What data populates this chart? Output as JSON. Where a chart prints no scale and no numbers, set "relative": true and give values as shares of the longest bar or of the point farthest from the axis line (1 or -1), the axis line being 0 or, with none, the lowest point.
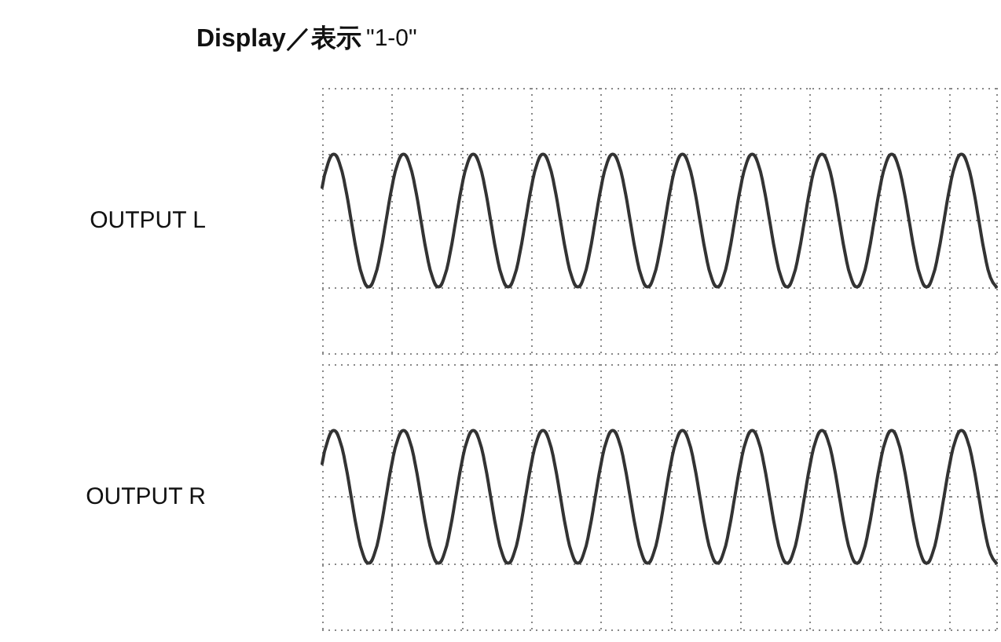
{
  "chart_data": [
    {
      "type": "line",
      "title": "Display／表示",
      "subtitle": "\"1-0\"",
      "ylabel": "OUTPUT L",
      "relative": true,
      "grid": true,
      "marker": "none",
      "categories": [
        null,
        null,
        null,
        null,
        null,
        null,
        null,
        null,
        null,
        null,
        null,
        null,
        null,
        null,
        null,
        null,
        null,
        null,
        null,
        null,
        null,
        null,
        null,
        null,
        null,
        null,
        null,
        null,
        null,
        null,
        null,
        null,
        null,
        null,
        null,
        null,
        null,
        null,
        null,
        null,
        null,
        null,
        null,
        null,
        null,
        null,
        null,
        null,
        null,
        null,
        null,
        null,
        null,
        null,
        null,
        null,
        null,
        null,
        null,
        null,
        null,
        null,
        null,
        null,
        null,
        null,
        null,
        null,
        null,
        null,
        null,
        null,
        null,
        null,
        null,
        null,
        null,
        null,
        null,
        null,
        null,
        null,
        null,
        null,
        null,
        null,
        null,
        null,
        null,
        null,
        null,
        null,
        null,
        null,
        null,
        null,
        null,
        null,
        null,
        null,
        null,
        null,
        null,
        null,
        null,
        null,
        null,
        null,
        null,
        null,
        null,
        null,
        null,
        null,
        null,
        null,
        null
      ],
      "series": [
        {
          "color": "#333333",
          "values": [
            0.75,
            0.93,
            1,
            0.93,
            0.75,
            0.5,
            0.25,
            0.07,
            0,
            0.07,
            0.25,
            0.5,
            0.75,
            0.93,
            1,
            0.93,
            0.75,
            0.5,
            0.25,
            0.07,
            0,
            0.07,
            0.25,
            0.5,
            0.75,
            0.93,
            1,
            0.93,
            0.75,
            0.5,
            0.25,
            0.07,
            0,
            0.07,
            0.25,
            0.5,
            0.75,
            0.93,
            1,
            0.93,
            0.75,
            0.5,
            0.25,
            0.07,
            0,
            0.07,
            0.25,
            0.5,
            0.75,
            0.93,
            1,
            0.93,
            0.75,
            0.5,
            0.25,
            0.07,
            0,
            0.07,
            0.25,
            0.5,
            0.75,
            0.93,
            1,
            0.93,
            0.75,
            0.5,
            0.25,
            0.07,
            0,
            0.07,
            0.25,
            0.5,
            0.75,
            0.93,
            1,
            0.93,
            0.75,
            0.5,
            0.25,
            0.07,
            0,
            0.07,
            0.25,
            0.5,
            0.75,
            0.93,
            1,
            0.93,
            0.75,
            0.5,
            0.25,
            0.07,
            0,
            0.07,
            0.25,
            0.5,
            0.75,
            0.93,
            1,
            0.93,
            0.75,
            0.5,
            0.25,
            0.07,
            0,
            0.07,
            0.25,
            0.5,
            0.75,
            0.93,
            1,
            0.93,
            0.75,
            0.5,
            0.25,
            0.07,
            0
          ]
        }
      ]
    },
    {
      "type": "line",
      "ylabel": "OUTPUT R",
      "relative": true,
      "grid": true,
      "marker": "none",
      "categories": [
        null,
        null,
        null,
        null,
        null,
        null,
        null,
        null,
        null,
        null,
        null,
        null,
        null,
        null,
        null,
        null,
        null,
        null,
        null,
        null,
        null,
        null,
        null,
        null,
        null,
        null,
        null,
        null,
        null,
        null,
        null,
        null,
        null,
        null,
        null,
        null,
        null,
        null,
        null,
        null,
        null,
        null,
        null,
        null,
        null,
        null,
        null,
        null,
        null,
        null,
        null,
        null,
        null,
        null,
        null,
        null,
        null,
        null,
        null,
        null,
        null,
        null,
        null,
        null,
        null,
        null,
        null,
        null,
        null,
        null,
        null,
        null,
        null,
        null,
        null,
        null,
        null,
        null,
        null,
        null,
        null,
        null,
        null,
        null,
        null,
        null,
        null,
        null,
        null,
        null,
        null,
        null,
        null,
        null,
        null,
        null,
        null,
        null,
        null,
        null,
        null,
        null,
        null,
        null,
        null,
        null,
        null,
        null,
        null,
        null,
        null,
        null,
        null,
        null,
        null,
        null,
        null
      ],
      "series": [
        {
          "color": "#333333",
          "values": [
            0.75,
            0.93,
            1,
            0.93,
            0.75,
            0.5,
            0.25,
            0.07,
            0,
            0.07,
            0.25,
            0.5,
            0.75,
            0.93,
            1,
            0.93,
            0.75,
            0.5,
            0.25,
            0.07,
            0,
            0.07,
            0.25,
            0.5,
            0.75,
            0.93,
            1,
            0.93,
            0.75,
            0.5,
            0.25,
            0.07,
            0,
            0.07,
            0.25,
            0.5,
            0.75,
            0.93,
            1,
            0.93,
            0.75,
            0.5,
            0.25,
            0.07,
            0,
            0.07,
            0.25,
            0.5,
            0.75,
            0.93,
            1,
            0.93,
            0.75,
            0.5,
            0.25,
            0.07,
            0,
            0.07,
            0.25,
            0.5,
            0.75,
            0.93,
            1,
            0.93,
            0.75,
            0.5,
            0.25,
            0.07,
            0,
            0.07,
            0.25,
            0.5,
            0.75,
            0.93,
            1,
            0.93,
            0.75,
            0.5,
            0.25,
            0.07,
            0,
            0.07,
            0.25,
            0.5,
            0.75,
            0.93,
            1,
            0.93,
            0.75,
            0.5,
            0.25,
            0.07,
            0,
            0.07,
            0.25,
            0.5,
            0.75,
            0.93,
            1,
            0.93,
            0.75,
            0.5,
            0.25,
            0.07,
            0,
            0.07,
            0.25,
            0.5,
            0.75,
            0.93,
            1,
            0.93,
            0.75,
            0.5,
            0.25,
            0.07,
            0
          ]
        }
      ]
    }
  ]
}
